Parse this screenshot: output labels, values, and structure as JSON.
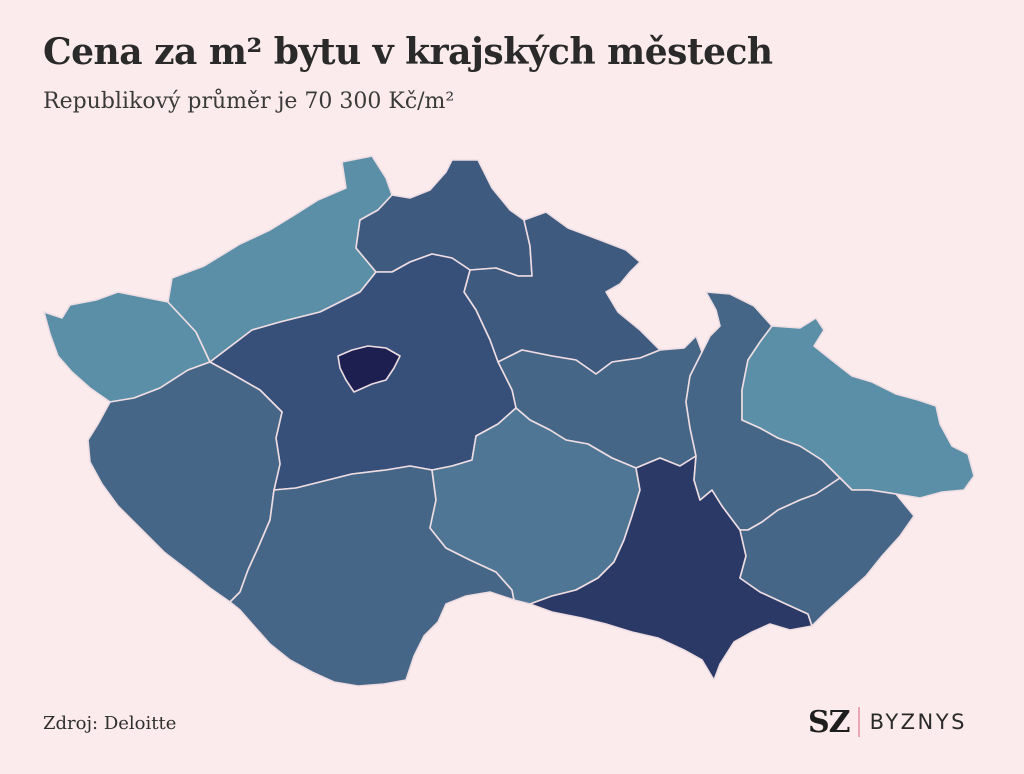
{
  "title": "Cena za m² bytu v krajských městech",
  "subtitle": "Republikový průměr je 70 300 Kč/m²",
  "source": "Zdroj: Deloitte",
  "logo": {
    "mark": "SZ",
    "section": "BYZNYS"
  },
  "colors": {
    "background": "#fcebec",
    "scale": {
      "lightest": "#5b8fa8",
      "light": "#4f7795",
      "mid": "#466687",
      "dark_mid": "#3e5a7f",
      "darker": "#36507a",
      "dark": "#2b3966",
      "darkest": "#1c1f4f"
    }
  },
  "map_data": {
    "type": "choropleth",
    "regions": [
      {
        "id": "karlovarsky",
        "shade": "lightest"
      },
      {
        "id": "ustecky",
        "shade": "lightest"
      },
      {
        "id": "liberecky",
        "shade": "dark_mid"
      },
      {
        "id": "kralovehradecky",
        "shade": "dark_mid"
      },
      {
        "id": "pardubicky",
        "shade": "mid"
      },
      {
        "id": "stredocesky",
        "shade": "darker"
      },
      {
        "id": "praha",
        "shade": "darkest"
      },
      {
        "id": "plzensky",
        "shade": "mid"
      },
      {
        "id": "jihocesky",
        "shade": "mid"
      },
      {
        "id": "vysocina",
        "shade": "light"
      },
      {
        "id": "jihomoravsky",
        "shade": "dark"
      },
      {
        "id": "olomoucky",
        "shade": "mid"
      },
      {
        "id": "moravskoslezsky",
        "shade": "lightest"
      },
      {
        "id": "zlinsky",
        "shade": "mid"
      }
    ]
  }
}
